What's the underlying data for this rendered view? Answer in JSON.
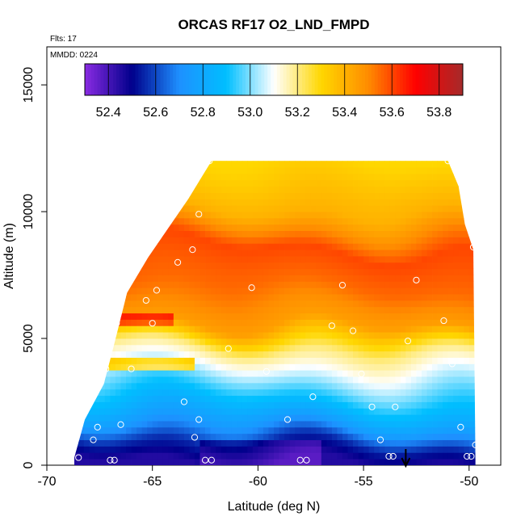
{
  "chart_data": {
    "type": "heatmap",
    "title": "ORCAS RF17 O2_LND_FMPD",
    "annotations": [
      "Flts: 17",
      "MMDD: 0224"
    ],
    "xlabel": "Latitude (deg N)",
    "ylabel": "Altitude (m)",
    "xlim": [
      -70,
      -48.5
    ],
    "ylim": [
      0,
      16500
    ],
    "x_ticks": [
      -70,
      -65,
      -60,
      -55,
      -50
    ],
    "x_tick_labels": [
      "-70",
      "-65",
      "-60",
      "-55",
      "-50"
    ],
    "y_ticks": [
      0,
      5000,
      10000,
      15000
    ],
    "y_tick_labels": [
      "0",
      "5000",
      "10000",
      "15000"
    ],
    "colorbar": {
      "range": [
        52.3,
        53.9
      ],
      "ticks": [
        52.4,
        52.6,
        52.8,
        53.0,
        53.2,
        53.4,
        53.6,
        53.8
      ],
      "tick_labels": [
        "52.4",
        "52.6",
        "52.8",
        "53.0",
        "53.2",
        "53.4",
        "53.6",
        "53.8"
      ],
      "colors": [
        "#8a2be2",
        "#00008b",
        "#1e90ff",
        "#00bfff",
        "#ffffff",
        "#ffd700",
        "#ff8c00",
        "#ff0000",
        "#a52a2a"
      ]
    },
    "marker": {
      "lat": -53,
      "label": "arrow"
    },
    "field_bands": [
      {
        "alt": 0,
        "value": 52.45
      },
      {
        "alt": 700,
        "value": 52.55
      },
      {
        "alt": 1500,
        "value": 52.75
      },
      {
        "alt": 2500,
        "value": 52.9
      },
      {
        "alt": 3500,
        "value": 53.05
      },
      {
        "alt": 4500,
        "value": 53.2
      },
      {
        "alt": 5500,
        "value": 53.45
      },
      {
        "alt": 7000,
        "value": 53.55
      },
      {
        "alt": 8500,
        "value": 53.6
      },
      {
        "alt": 10000,
        "value": 53.4
      },
      {
        "alt": 12000,
        "value": 53.3
      }
    ],
    "domain_top": [
      {
        "lat": -68.7,
        "alt": 300
      },
      {
        "lat": -68.2,
        "alt": 1800
      },
      {
        "lat": -67.3,
        "alt": 3200
      },
      {
        "lat": -66.8,
        "alt": 4800
      },
      {
        "lat": -66.2,
        "alt": 6800
      },
      {
        "lat": -65.2,
        "alt": 8200
      },
      {
        "lat": -63.3,
        "alt": 10500
      },
      {
        "lat": -62.2,
        "alt": 12000
      },
      {
        "lat": -51,
        "alt": 12000
      },
      {
        "lat": -50.5,
        "alt": 11000
      },
      {
        "lat": -50.2,
        "alt": 9500
      },
      {
        "lat": -49.8,
        "alt": 8500
      },
      {
        "lat": -49.7,
        "alt": 200
      }
    ],
    "sample_points": [
      {
        "lat": -68.5,
        "alt": 300
      },
      {
        "lat": -67.8,
        "alt": 1000
      },
      {
        "lat": -67.6,
        "alt": 1500
      },
      {
        "lat": -67.0,
        "alt": 200
      },
      {
        "lat": -66.8,
        "alt": 200
      },
      {
        "lat": -66.5,
        "alt": 1600
      },
      {
        "lat": -67.2,
        "alt": 3800
      },
      {
        "lat": -66.0,
        "alt": 3800
      },
      {
        "lat": -66.7,
        "alt": 5600
      },
      {
        "lat": -65.0,
        "alt": 5600
      },
      {
        "lat": -65.3,
        "alt": 6500
      },
      {
        "lat": -64.8,
        "alt": 6900
      },
      {
        "lat": -66.0,
        "alt": 7600
      },
      {
        "lat": -63.8,
        "alt": 8000
      },
      {
        "lat": -63.1,
        "alt": 8500
      },
      {
        "lat": -62.8,
        "alt": 9900
      },
      {
        "lat": -62.3,
        "alt": 12000
      },
      {
        "lat": -63.5,
        "alt": 2500
      },
      {
        "lat": -62.8,
        "alt": 1800
      },
      {
        "lat": -63.0,
        "alt": 1100
      },
      {
        "lat": -62.5,
        "alt": 200
      },
      {
        "lat": -62.2,
        "alt": 200
      },
      {
        "lat": -61.4,
        "alt": 4600
      },
      {
        "lat": -60.3,
        "alt": 7000
      },
      {
        "lat": -59.6,
        "alt": 3700
      },
      {
        "lat": -59.1,
        "alt": 12200
      },
      {
        "lat": -58.6,
        "alt": 1800
      },
      {
        "lat": -58.0,
        "alt": 200
      },
      {
        "lat": -57.7,
        "alt": 200
      },
      {
        "lat": -57.4,
        "alt": 2700
      },
      {
        "lat": -56.5,
        "alt": 5500
      },
      {
        "lat": -56.0,
        "alt": 7100
      },
      {
        "lat": -55.6,
        "alt": 12300
      },
      {
        "lat": -55.5,
        "alt": 5300
      },
      {
        "lat": -55.1,
        "alt": 3600
      },
      {
        "lat": -54.6,
        "alt": 2300
      },
      {
        "lat": -54.2,
        "alt": 1000
      },
      {
        "lat": -53.8,
        "alt": 350
      },
      {
        "lat": -53.6,
        "alt": 350
      },
      {
        "lat": -53.5,
        "alt": 2300
      },
      {
        "lat": -52.9,
        "alt": 4900
      },
      {
        "lat": -52.5,
        "alt": 7300
      },
      {
        "lat": -51.2,
        "alt": 5700
      },
      {
        "lat": -51.0,
        "alt": 12000
      },
      {
        "lat": -50.8,
        "alt": 4000
      },
      {
        "lat": -50.4,
        "alt": 1500
      },
      {
        "lat": -50.1,
        "alt": 350
      },
      {
        "lat": -49.9,
        "alt": 350
      },
      {
        "lat": -49.8,
        "alt": 8600
      },
      {
        "lat": -49.7,
        "alt": 800
      }
    ]
  }
}
